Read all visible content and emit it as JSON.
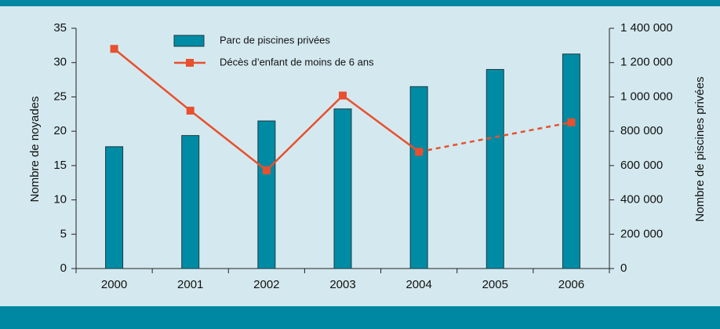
{
  "chart_data": {
    "type": "bar",
    "categories": [
      "2000",
      "2001",
      "2002",
      "2003",
      "2004",
      "2005",
      "2006"
    ],
    "ylabel": "Nombre de noyades",
    "y2label": "Nombre de piscines privées",
    "ylim": [
      0,
      35
    ],
    "yticks": [
      0,
      5,
      10,
      15,
      20,
      25,
      30,
      35
    ],
    "y2lim": [
      0,
      1400000
    ],
    "y2ticks": [
      0,
      {
        "value": 200000,
        "label": "200 000"
      },
      {
        "value": 400000,
        "label": "400 000"
      },
      {
        "value": 600000,
        "label": "600 000"
      },
      {
        "value": 800000,
        "label": "800 000"
      },
      {
        "value": 1000000,
        "label": "1 000 000"
      },
      {
        "value": 1200000,
        "label": "1 200 000"
      },
      {
        "value": 1400000,
        "label": "1 400 000"
      }
    ],
    "series": [
      {
        "name": "Parc de piscines privées",
        "type": "bar",
        "axis": "y2",
        "color": "#008ba4",
        "values": [
          710000,
          775000,
          860000,
          930000,
          1060000,
          1160000,
          1250000
        ]
      },
      {
        "name": "Décès d’enfant de moins de 6 ans",
        "type": "line",
        "axis": "y",
        "color": "#e8502e",
        "values": [
          32,
          23,
          14.3,
          25.2,
          17,
          null,
          21.3
        ]
      }
    ]
  }
}
